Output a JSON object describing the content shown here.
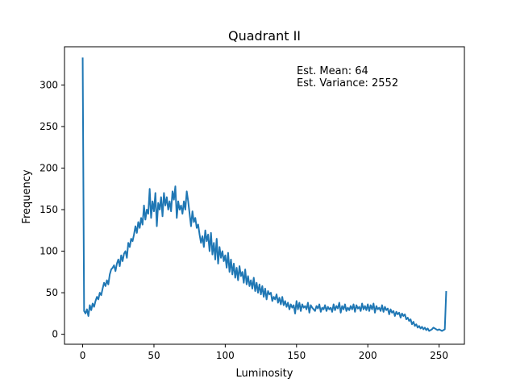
{
  "chart_data": {
    "type": "line",
    "title": "Quadrant II",
    "xlabel": "Luminosity",
    "ylabel": "Frequency",
    "xlim": [
      -12.75,
      267.75
    ],
    "ylim": [
      -12,
      346
    ],
    "xticks": [
      0,
      50,
      100,
      150,
      200,
      250
    ],
    "yticks": [
      0,
      50,
      100,
      150,
      200,
      250,
      300
    ],
    "grid": false,
    "line_color": "#1f77b4",
    "annotations": [
      "Est. Mean: 64",
      "Est. Variance: 2552"
    ],
    "series": [
      {
        "x_start": 0,
        "x_step": 1,
        "values": [
          333,
          28,
          25,
          30,
          22,
          35,
          29,
          37,
          33,
          40,
          45,
          42,
          50,
          47,
          55,
          62,
          58,
          65,
          60,
          72,
          78,
          80,
          83,
          76,
          85,
          90,
          82,
          95,
          88,
          97,
          100,
          92,
          110,
          105,
          115,
          112,
          120,
          130,
          122,
          135,
          128,
          140,
          132,
          155,
          138,
          150,
          145,
          175,
          140,
          160,
          148,
          170,
          130,
          158,
          150,
          165,
          142,
          170,
          155,
          165,
          150,
          160,
          148,
          172,
          162,
          178,
          140,
          160,
          150,
          155,
          145,
          160,
          150,
          172,
          160,
          145,
          130,
          148,
          135,
          140,
          128,
          132,
          120,
          110,
          118,
          105,
          125,
          112,
          120,
          100,
          122,
          96,
          110,
          90,
          115,
          85,
          105,
          92,
          100,
          88,
          95,
          80,
          98,
          75,
          90,
          72,
          85,
          68,
          80,
          65,
          82,
          70,
          75,
          62,
          78,
          60,
          70,
          58,
          65,
          55,
          68,
          52,
          62,
          50,
          60,
          48,
          58,
          45,
          55,
          42,
          52,
          48,
          50,
          40,
          45,
          42,
          48,
          38,
          44,
          36,
          45,
          35,
          40,
          33,
          38,
          30,
          36,
          32,
          35,
          25,
          40,
          30,
          38,
          28,
          36,
          32,
          34,
          30,
          38,
          26,
          35,
          32,
          30,
          28,
          34,
          31,
          36,
          27,
          32,
          30,
          35,
          28,
          33,
          30,
          32,
          27,
          36,
          29,
          34,
          31,
          38,
          26,
          34,
          30,
          36,
          28,
          32,
          29,
          34,
          30,
          36,
          27,
          35,
          31,
          33,
          28,
          37,
          30,
          34,
          29,
          36,
          28,
          35,
          30,
          37,
          26,
          34,
          30,
          32,
          28,
          35,
          27,
          33,
          29,
          31,
          24,
          30,
          26,
          28,
          22,
          27,
          24,
          26,
          20,
          25,
          22,
          24,
          18,
          20,
          16,
          18,
          12,
          15,
          10,
          12,
          8,
          10,
          7,
          9,
          6,
          8,
          5,
          7,
          4,
          5,
          6,
          8,
          7,
          6,
          5,
          6,
          5,
          4,
          5,
          6,
          52
        ]
      }
    ]
  }
}
